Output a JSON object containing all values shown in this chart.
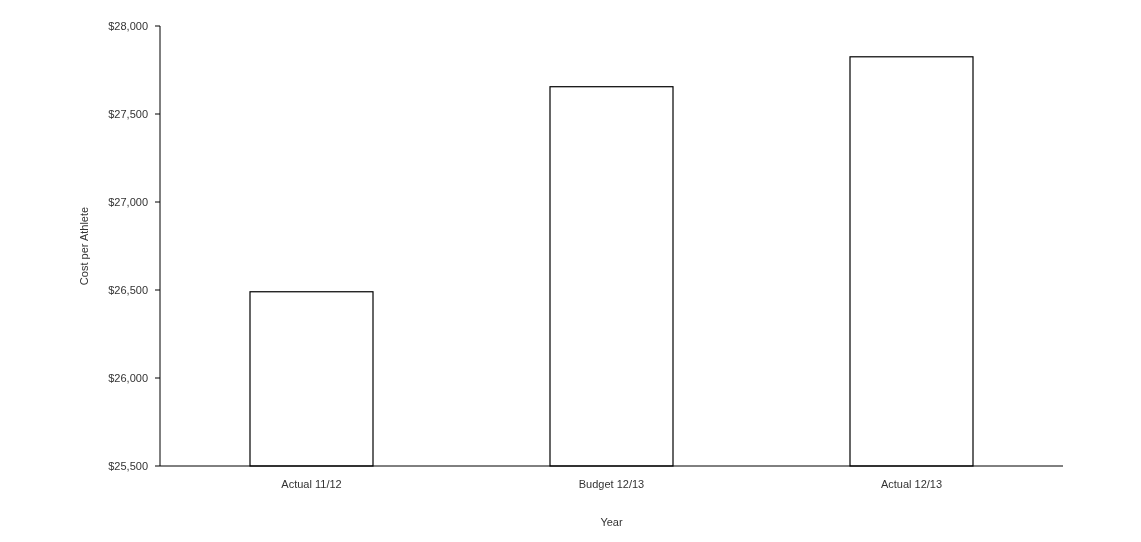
{
  "chart_data": {
    "type": "bar",
    "xlabel": "Year",
    "ylabel": "Cost per Athlete",
    "categories": [
      "Actual 11/12",
      "Budget 12/13",
      "Actual 12/13"
    ],
    "values": [
      26490,
      27655,
      27825
    ],
    "color": "#ffffff",
    "ylim": [
      25500,
      28000
    ],
    "yticks": [
      {
        "value": 25500,
        "label": "$25,500"
      },
      {
        "value": 26000,
        "label": "$26,000"
      },
      {
        "value": 26500,
        "label": "$26,500"
      },
      {
        "value": 27000,
        "label": "$27,000"
      },
      {
        "value": 27500,
        "label": "$27,500"
      },
      {
        "value": 28000,
        "label": "$28,000"
      }
    ],
    "grid": false
  }
}
